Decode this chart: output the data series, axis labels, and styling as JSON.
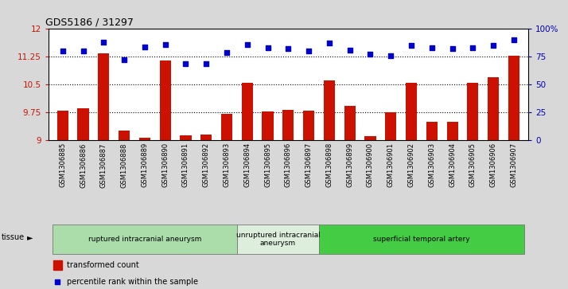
{
  "title": "GDS5186 / 31297",
  "samples": [
    "GSM1306885",
    "GSM1306886",
    "GSM1306887",
    "GSM1306888",
    "GSM1306889",
    "GSM1306890",
    "GSM1306891",
    "GSM1306892",
    "GSM1306893",
    "GSM1306894",
    "GSM1306895",
    "GSM1306896",
    "GSM1306897",
    "GSM1306898",
    "GSM1306899",
    "GSM1306900",
    "GSM1306901",
    "GSM1306902",
    "GSM1306903",
    "GSM1306904",
    "GSM1306905",
    "GSM1306906",
    "GSM1306907"
  ],
  "bar_values": [
    9.8,
    9.85,
    11.35,
    9.25,
    9.07,
    11.15,
    9.12,
    9.16,
    9.72,
    10.55,
    9.78,
    9.82,
    9.8,
    10.62,
    9.93,
    9.1,
    9.75,
    10.55,
    9.5,
    9.5,
    10.55,
    10.7,
    11.28
  ],
  "percentile_values": [
    80,
    80,
    88,
    72,
    84,
    86,
    69,
    69,
    79,
    86,
    83,
    82,
    80,
    87,
    81,
    77,
    76,
    85,
    83,
    82,
    83,
    85,
    90
  ],
  "bar_color": "#cc1100",
  "percentile_color": "#0000cc",
  "ylim_left": [
    9.0,
    12.0
  ],
  "ylim_right": [
    0,
    100
  ],
  "yticks_left": [
    9.0,
    9.75,
    10.5,
    11.25,
    12.0
  ],
  "ytick_labels_left": [
    "9",
    "9.75",
    "10.5",
    "11.25",
    "12"
  ],
  "yticks_right": [
    0,
    25,
    50,
    75,
    100
  ],
  "ytick_labels_right": [
    "0",
    "25",
    "50",
    "75",
    "100%"
  ],
  "hlines": [
    9.75,
    10.5,
    11.25
  ],
  "groups": [
    {
      "label": "ruptured intracranial aneurysm",
      "start": 0,
      "end": 9,
      "color": "#aaddaa"
    },
    {
      "label": "unruptured intracranial\naneurysm",
      "start": 9,
      "end": 13,
      "color": "#ddeedd"
    },
    {
      "label": "superficial temporal artery",
      "start": 13,
      "end": 23,
      "color": "#44cc44"
    }
  ],
  "tissue_label": "tissue",
  "legend_bar_label": "transformed count",
  "legend_dot_label": "percentile rank within the sample",
  "fig_bg": "#d8d8d8",
  "plot_bg": "#ffffff",
  "xlabel_bg": "#d0d0d0"
}
